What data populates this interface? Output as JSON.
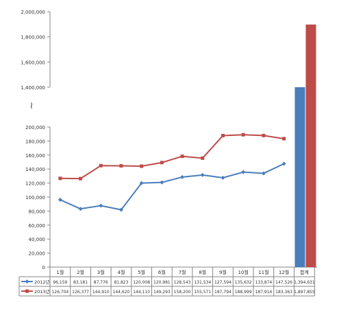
{
  "chart_data": {
    "type": "line",
    "categories": [
      "1월",
      "2월",
      "3월",
      "4월",
      "5월",
      "6월",
      "7월",
      "8월",
      "9월",
      "10월",
      "11월",
      "12월"
    ],
    "total_label": "합계",
    "series": [
      {
        "name": "2012년",
        "color": "#4a7ebb",
        "marker": "diamond",
        "values": [
          96159,
          83181,
          87776,
          81823,
          120008,
          120981,
          128543,
          131534,
          127594,
          135632,
          133874,
          147526
        ],
        "labels": [
          "96,159",
          "83,181",
          "87,776",
          "81,823",
          "120,008",
          "120,981",
          "128,543",
          "131,534",
          "127,594",
          "135,632",
          "133,874",
          "147,526"
        ],
        "total": 1394631,
        "total_label": "1,394,631"
      },
      {
        "name": "2013년",
        "color": "#be4b48",
        "marker": "square",
        "values": [
          126704,
          126377,
          144910,
          144620,
          144110,
          149293,
          158200,
          155571,
          187794,
          188999,
          187914,
          183363
        ],
        "labels": [
          "126,704",
          "126,377",
          "144,910",
          "144,620",
          "144,110",
          "149,293",
          "158,200",
          "155,571",
          "187,794",
          "188,999",
          "187,914",
          "183,363"
        ],
        "total": 1897855,
        "total_label": "1,897,855"
      }
    ],
    "y_axis": {
      "lower_ticks": [
        "0",
        "20,000",
        "40,000",
        "60,000",
        "80,000",
        "100,000",
        "120,000",
        "140,000",
        "160,000",
        "180,000",
        "200,000"
      ],
      "upper_ticks": [
        "1,400,000",
        "1,600,000",
        "1,800,000",
        "2,000,000"
      ],
      "break_symbol": "≀",
      "lower_range": [
        0,
        200000
      ],
      "upper_range": [
        1400000,
        2000000
      ]
    },
    "grid": false,
    "legend": "data-table"
  }
}
